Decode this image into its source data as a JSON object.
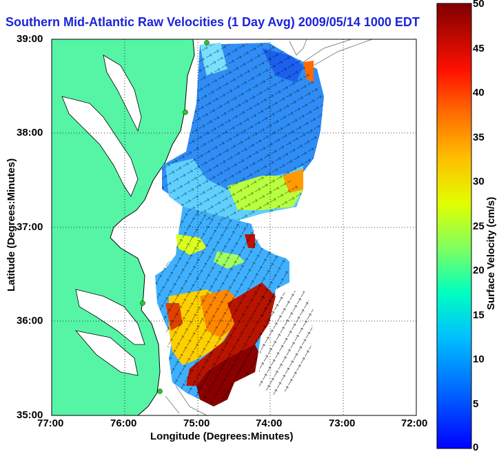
{
  "title": "Southern Mid-Atlantic Raw Velocities (1 Day Avg) 2009/05/14 1000 EDT",
  "axes": {
    "xlabel": "Longitude (Degrees:Minutes)",
    "ylabel": "Latitude (Degrees:Minutes)",
    "x_ticks": [
      "77:00",
      "76:00",
      "75:00",
      "74:00",
      "73:00",
      "72:00"
    ],
    "y_ticks": [
      "39:00",
      "38:00",
      "37:00",
      "36:00",
      "35:00"
    ],
    "x_range": [
      -77,
      -72
    ],
    "y_range": [
      35,
      39
    ]
  },
  "colorbar": {
    "label": "Surface Velocity (cm/s)",
    "ticks": [
      "0",
      "5",
      "10",
      "15",
      "20",
      "25",
      "30",
      "35",
      "40",
      "45",
      "50"
    ],
    "range": [
      0,
      50
    ],
    "colormap": "jet"
  },
  "colors": {
    "land": "#55f5a5",
    "title": "#1a24d8",
    "background": "#ffffff"
  }
}
